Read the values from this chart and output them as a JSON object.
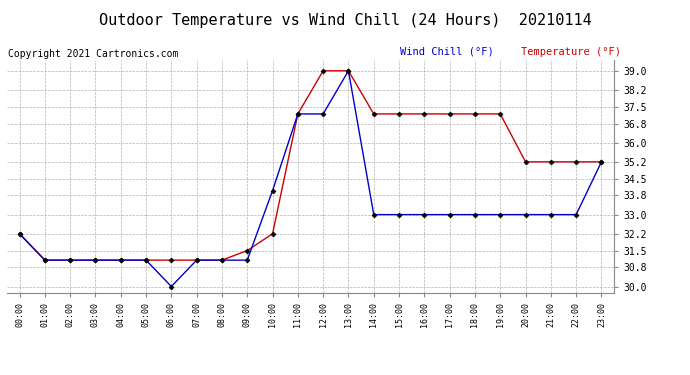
{
  "title": "Outdoor Temperature vs Wind Chill (24 Hours)  20210114",
  "copyright": "Copyright 2021 Cartronics.com",
  "legend_wind_chill": "Wind Chill (°F)",
  "legend_temperature": "Temperature (°F)",
  "hours": [
    0,
    1,
    2,
    3,
    4,
    5,
    6,
    7,
    8,
    9,
    10,
    11,
    12,
    13,
    14,
    15,
    16,
    17,
    18,
    19,
    20,
    21,
    22,
    23
  ],
  "temperature": [
    32.2,
    31.1,
    31.1,
    31.1,
    31.1,
    31.1,
    31.1,
    31.1,
    31.1,
    31.5,
    32.2,
    37.2,
    39.0,
    39.0,
    37.2,
    37.2,
    37.2,
    37.2,
    37.2,
    37.2,
    35.2,
    35.2,
    35.2,
    35.2
  ],
  "wind_chill": [
    32.2,
    31.1,
    31.1,
    31.1,
    31.1,
    31.1,
    30.0,
    31.1,
    31.1,
    31.1,
    34.0,
    37.2,
    37.2,
    39.0,
    33.0,
    33.0,
    33.0,
    33.0,
    33.0,
    33.0,
    33.0,
    33.0,
    33.0,
    35.2
  ],
  "ylim": [
    29.75,
    39.45
  ],
  "yticks": [
    30.0,
    30.8,
    31.5,
    32.2,
    33.0,
    33.8,
    34.5,
    35.2,
    36.0,
    36.8,
    37.5,
    38.2,
    39.0
  ],
  "temp_color": "#CC0000",
  "wind_color": "#0000CC",
  "marker": "D",
  "marker_size": 2.5,
  "grid_color": "#AAAAAA",
  "background_color": "#FFFFFF",
  "title_fontsize": 11,
  "copyright_fontsize": 7,
  "legend_fontsize": 7.5
}
